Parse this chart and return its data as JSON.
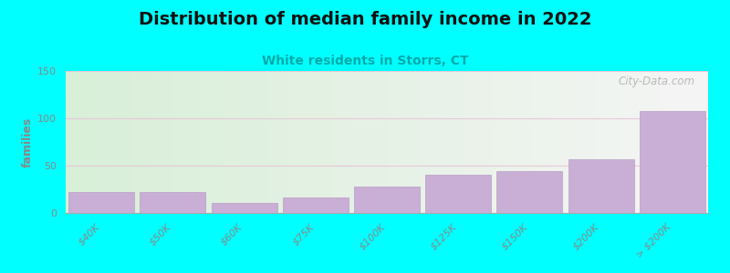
{
  "title": "Distribution of median family income in 2022",
  "subtitle": "White residents in Storrs, CT",
  "categories": [
    "$40K",
    "$50K",
    "$60K",
    "$75K",
    "$100K",
    "$125K",
    "$150K",
    "$200K",
    "> $200K"
  ],
  "values": [
    22,
    22,
    11,
    16,
    28,
    40,
    44,
    57,
    108
  ],
  "bar_color": "#c9aed6",
  "bar_edge_color": "#b89ec6",
  "ylabel": "families",
  "ylim": [
    0,
    150
  ],
  "yticks": [
    0,
    50,
    100,
    150
  ],
  "background_color": "#00ffff",
  "grad_left_color": "#d8efd8",
  "grad_right_color": "#f0f0f0",
  "title_fontsize": 14,
  "subtitle_fontsize": 10,
  "subtitle_color": "#00aaaa",
  "watermark": "City-Data.com",
  "grid_color": "#e8c8d8",
  "tick_color": "#888888",
  "ylabel_color": "#888888",
  "bar_width": 0.92
}
